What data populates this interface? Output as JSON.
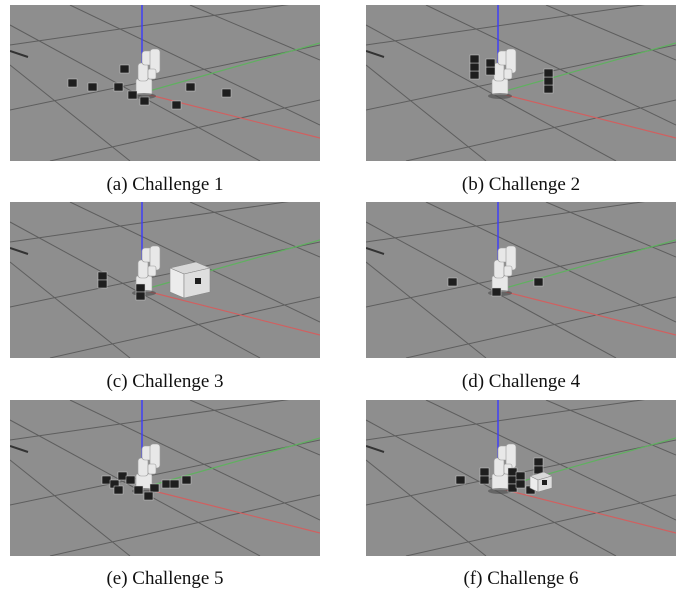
{
  "figure": {
    "panels": [
      {
        "caption": "(a) Challenge 1"
      },
      {
        "caption": "(b) Challenge 2"
      },
      {
        "caption": "(c) Challenge 3"
      },
      {
        "caption": "(d) Challenge 4"
      },
      {
        "caption": "(e) Challenge 5"
      },
      {
        "caption": "(f) Challenge 6"
      }
    ]
  },
  "colors": {
    "floor": "#8e8e8e",
    "grid": "#5e5e5e",
    "z_axis": "#3a3aff",
    "x_axis": "#d06060",
    "y_axis": "#60b060",
    "robot": "#e8e8e8",
    "cube": "#1e1e1e"
  }
}
